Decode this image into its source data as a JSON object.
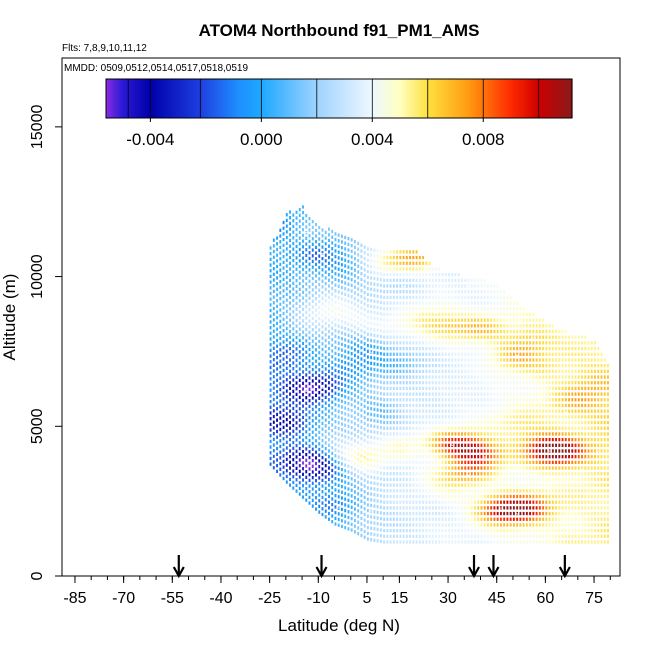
{
  "chart_data": {
    "type": "heatmap",
    "title": "ATOM4 Northbound f91_PM1_AMS",
    "flights_note": "Flts: 7,8,9,10,11,12",
    "dates_note": "MMDD: 0509,0512,0514,0517,0518,0519",
    "xlabel": "Latitude (deg N)",
    "ylabel": "Altitude (m)",
    "xlim": [
      -89,
      83
    ],
    "ylim": [
      0,
      17300
    ],
    "x_ticks": [
      -85,
      -70,
      -55,
      -40,
      -25,
      -10,
      5,
      15,
      30,
      45,
      60,
      75
    ],
    "x_minor_step": 5,
    "y_ticks": [
      0,
      5000,
      10000,
      15000
    ],
    "colorbar": {
      "range": [
        -0.0056,
        0.0112
      ],
      "ticks": [
        -0.004,
        0.0,
        0.004,
        0.008
      ],
      "tick_labels": [
        "-0.004",
        "0.000",
        "0.004",
        "0.008"
      ],
      "boundaries": [
        -0.0056,
        -0.0048,
        -0.004,
        -0.0022,
        0.0,
        0.002,
        0.004,
        0.006,
        0.008,
        0.01,
        0.0112
      ],
      "color_stops": [
        {
          "v": -0.0056,
          "c": "#8a2be2"
        },
        {
          "v": -0.005,
          "c": "#2a1ad6"
        },
        {
          "v": -0.004,
          "c": "#0000aa"
        },
        {
          "v": -0.0022,
          "c": "#1e3fe0"
        },
        {
          "v": -0.0008,
          "c": "#1e90ff"
        },
        {
          "v": 0.0,
          "c": "#1ea8ff"
        },
        {
          "v": 0.002,
          "c": "#9fd3ff"
        },
        {
          "v": 0.004,
          "c": "#eef8ff"
        },
        {
          "v": 0.005,
          "c": "#ffffc0"
        },
        {
          "v": 0.006,
          "c": "#ffe040"
        },
        {
          "v": 0.0075,
          "c": "#ff9a10"
        },
        {
          "v": 0.009,
          "c": "#ff2a00"
        },
        {
          "v": 0.01,
          "c": "#cc0000"
        },
        {
          "v": 0.0112,
          "c": "#8b1a1a"
        }
      ]
    },
    "arrow_latitudes": [
      -53,
      -9,
      38,
      44,
      66
    ],
    "profiles": [
      {
        "lat": -25,
        "bot": 3600,
        "top": 10900
      },
      {
        "lat": -20,
        "bot": 3000,
        "top": 12000
      },
      {
        "lat": -15,
        "bot": 2500,
        "top": 12200
      },
      {
        "lat": -10,
        "bot": 2000,
        "top": 11600
      },
      {
        "lat": -5,
        "bot": 1600,
        "top": 11400
      },
      {
        "lat": 0,
        "bot": 1400,
        "top": 11100
      },
      {
        "lat": 5,
        "bot": 1100,
        "top": 10900
      },
      {
        "lat": 10,
        "bot": 1000,
        "top": 10800
      },
      {
        "lat": 15,
        "bot": 1000,
        "top": 10800
      },
      {
        "lat": 20,
        "bot": 1000,
        "top": 10700
      },
      {
        "lat": 25,
        "bot": 1000,
        "top": 10300
      },
      {
        "lat": 30,
        "bot": 1000,
        "top": 10000
      },
      {
        "lat": 35,
        "bot": 1000,
        "top": 9900
      },
      {
        "lat": 40,
        "bot": 1000,
        "top": 9800
      },
      {
        "lat": 45,
        "bot": 1000,
        "top": 9600
      },
      {
        "lat": 50,
        "bot": 1000,
        "top": 9100
      },
      {
        "lat": 55,
        "bot": 1000,
        "top": 8700
      },
      {
        "lat": 60,
        "bot": 1000,
        "top": 8400
      },
      {
        "lat": 65,
        "bot": 1000,
        "top": 8100
      },
      {
        "lat": 70,
        "bot": 1000,
        "top": 7900
      },
      {
        "lat": 75,
        "bot": 1000,
        "top": 7800
      },
      {
        "lat": 80,
        "bot": 1000,
        "top": 6800
      }
    ],
    "anomalies": [
      {
        "lat": -25,
        "alt": 11600,
        "value": -0.0009
      },
      {
        "lat": -20,
        "alt": 9800,
        "value": 0.0018
      },
      {
        "lat": -20,
        "alt": 7300,
        "value": -0.0016
      },
      {
        "lat": -20,
        "alt": 5000,
        "value": -0.0044
      },
      {
        "lat": -15,
        "alt": 11300,
        "value": 0.0026
      },
      {
        "lat": -15,
        "alt": 8800,
        "value": 0.0032
      },
      {
        "lat": -15,
        "alt": 6100,
        "value": -0.0036
      },
      {
        "lat": -15,
        "alt": 3700,
        "value": -0.0046
      },
      {
        "lat": -10,
        "alt": 10600,
        "value": -0.002
      },
      {
        "lat": -10,
        "alt": 8600,
        "value": 0.005
      },
      {
        "lat": -10,
        "alt": 6200,
        "value": -0.0031
      },
      {
        "lat": -10,
        "alt": 3400,
        "value": -0.004
      },
      {
        "lat": -5,
        "alt": 9000,
        "value": 0.0048
      },
      {
        "lat": -5,
        "alt": 4500,
        "value": 0.0034
      },
      {
        "lat": -5,
        "alt": 2200,
        "value": -0.0018
      },
      {
        "lat": 0,
        "alt": 10200,
        "value": -0.0014
      },
      {
        "lat": 0,
        "alt": 8400,
        "value": 0.0038
      },
      {
        "lat": 0,
        "alt": 6800,
        "value": -0.0012
      },
      {
        "lat": 0,
        "alt": 4000,
        "value": 0.0056
      },
      {
        "lat": 5,
        "alt": 10500,
        "value": 0.004
      },
      {
        "lat": 5,
        "alt": 7400,
        "value": -0.0014
      },
      {
        "lat": 5,
        "alt": 3700,
        "value": 0.0056
      },
      {
        "lat": 5,
        "alt": 2000,
        "value": 0.0022
      },
      {
        "lat": 10,
        "alt": 10200,
        "value": 0.0058
      },
      {
        "lat": 10,
        "alt": 8200,
        "value": 0.0044
      },
      {
        "lat": 10,
        "alt": 5400,
        "value": -0.0004
      },
      {
        "lat": 15,
        "alt": 9600,
        "value": 0.0012
      },
      {
        "lat": 15,
        "alt": 7000,
        "value": -0.001
      },
      {
        "lat": 15,
        "alt": 4200,
        "value": 0.0052
      },
      {
        "lat": 20,
        "alt": 10500,
        "value": 0.0086
      },
      {
        "lat": 20,
        "alt": 8300,
        "value": 0.0046
      },
      {
        "lat": 20,
        "alt": 5400,
        "value": 0.0028
      },
      {
        "lat": 25,
        "alt": 8700,
        "value": 0.0042
      },
      {
        "lat": 25,
        "alt": 6000,
        "value": 0.0014
      },
      {
        "lat": 25,
        "alt": 3200,
        "value": 0.004
      },
      {
        "lat": 30,
        "alt": 8200,
        "value": 0.0058
      },
      {
        "lat": 30,
        "alt": 4300,
        "value": 0.0074
      },
      {
        "lat": 30,
        "alt": 2600,
        "value": 0.0034
      },
      {
        "lat": 35,
        "alt": 9600,
        "value": 0.002
      },
      {
        "lat": 35,
        "alt": 4200,
        "value": 0.0078
      },
      {
        "lat": 35,
        "alt": 3300,
        "value": 0.0072
      },
      {
        "lat": 40,
        "alt": 8100,
        "value": 0.006
      },
      {
        "lat": 40,
        "alt": 3900,
        "value": 0.0086
      },
      {
        "lat": 40,
        "alt": 6500,
        "value": 0.0016
      },
      {
        "lat": 45,
        "alt": 2100,
        "value": 0.0082
      },
      {
        "lat": 45,
        "alt": 8500,
        "value": 0.0024
      },
      {
        "lat": 50,
        "alt": 2000,
        "value": 0.0078
      },
      {
        "lat": 50,
        "alt": 5000,
        "value": 0.004
      },
      {
        "lat": 50,
        "alt": 7200,
        "value": 0.0058
      },
      {
        "lat": 55,
        "alt": 2200,
        "value": 0.0076
      },
      {
        "lat": 55,
        "alt": 7800,
        "value": 0.0052
      },
      {
        "lat": 55,
        "alt": 4600,
        "value": 0.0034
      },
      {
        "lat": 60,
        "alt": 4100,
        "value": 0.0098
      },
      {
        "lat": 60,
        "alt": 6800,
        "value": 0.0036
      },
      {
        "lat": 60,
        "alt": 2800,
        "value": 0.002
      },
      {
        "lat": 65,
        "alt": 4000,
        "value": 0.0086
      },
      {
        "lat": 65,
        "alt": 5400,
        "value": 0.003
      },
      {
        "lat": 70,
        "alt": 5800,
        "value": 0.0048
      },
      {
        "lat": 70,
        "alt": 3400,
        "value": 0.0024
      },
      {
        "lat": 75,
        "alt": 6400,
        "value": 0.004
      },
      {
        "lat": 75,
        "alt": 4000,
        "value": 0.003
      },
      {
        "lat": 80,
        "alt": 5200,
        "value": 0.0036
      }
    ]
  }
}
